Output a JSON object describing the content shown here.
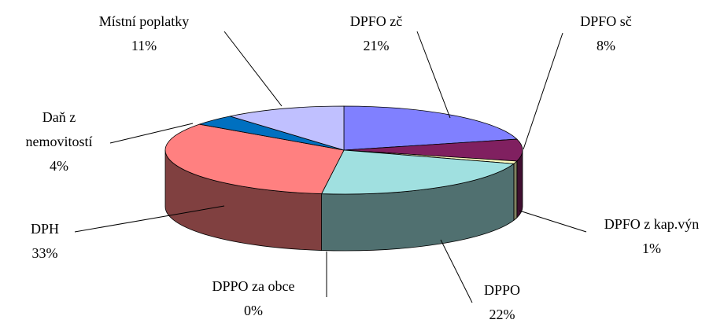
{
  "chart_data": {
    "type": "pie3d",
    "categories": [
      "DPFO zč",
      "DPFO sč",
      "DPFO z kap.výn",
      "DPPO",
      "DPPO za obce",
      "DPH",
      "Daň z nemovitostí",
      "Místní poplatky"
    ],
    "values": [
      21,
      8,
      1,
      22,
      0,
      33,
      4,
      11
    ],
    "value_labels": [
      "21%",
      "8%",
      "1%",
      "22%",
      "0%",
      "33%",
      "4%",
      "11%"
    ],
    "colors": [
      "#8080ff",
      "#802060",
      "#ffffc0",
      "#a0e0e0",
      "#606060",
      "#ff8080",
      "#0070c0",
      "#c0c0ff"
    ]
  }
}
